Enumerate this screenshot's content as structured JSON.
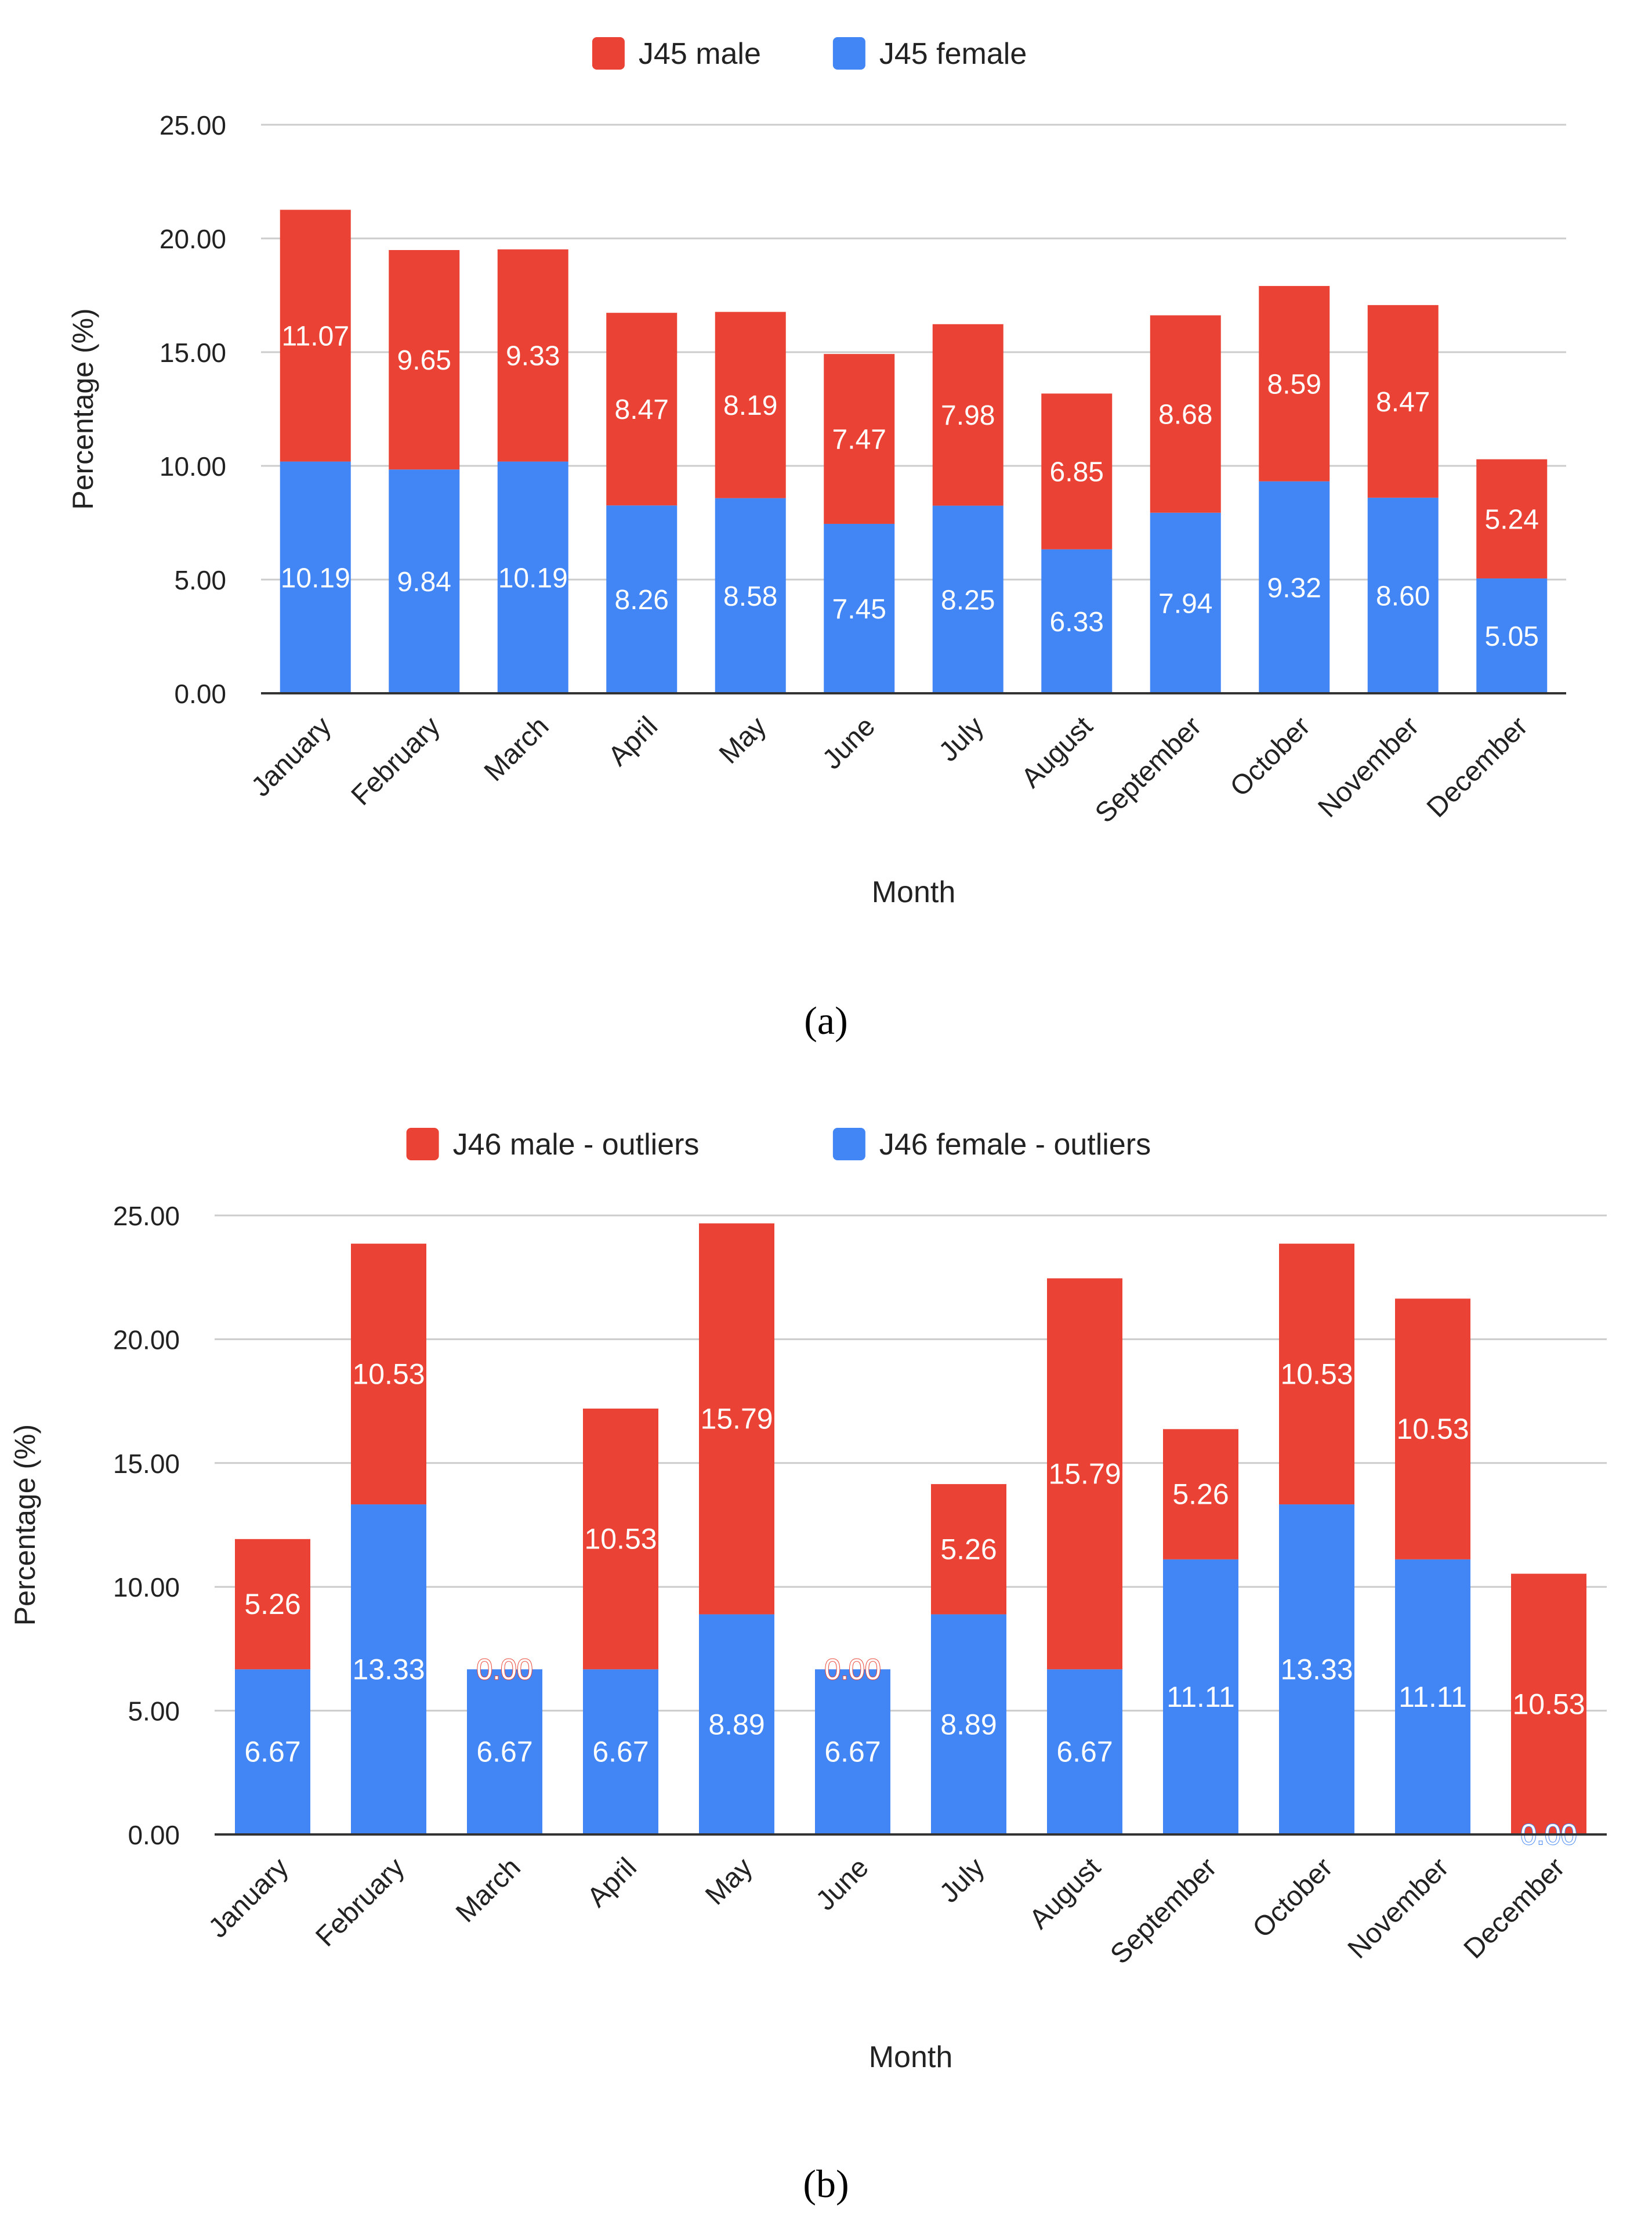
{
  "colors": {
    "male": "#ea4335",
    "female": "#4285f4",
    "grid": "#cccccc",
    "axis": "#333333",
    "text": "#222222"
  },
  "panel_labels": [
    "(a)",
    "(b)"
  ],
  "chart_data": [
    {
      "type": "bar",
      "stacked": true,
      "title": "",
      "xlabel": "Month",
      "ylabel": "Percentage (%)",
      "ylim": [
        0,
        25
      ],
      "yticks": [
        "0.00",
        "5.00",
        "10.00",
        "15.00",
        "20.00",
        "25.00"
      ],
      "legend_position": "top",
      "categories": [
        "January",
        "February",
        "March",
        "April",
        "May",
        "June",
        "July",
        "August",
        "September",
        "October",
        "November",
        "December"
      ],
      "series": [
        {
          "name": "J45 female",
          "color_key": "female",
          "values": [
            10.19,
            9.84,
            10.19,
            8.26,
            8.58,
            7.45,
            8.25,
            6.33,
            7.94,
            9.32,
            8.6,
            5.05
          ],
          "labels": [
            "10.19",
            "9.84",
            "10.19",
            "8.26",
            "8.58",
            "7.45",
            "8.25",
            "6.33",
            "7.94",
            "9.32",
            "8.60",
            "5.05"
          ]
        },
        {
          "name": "J45 male",
          "color_key": "male",
          "values": [
            11.07,
            9.65,
            9.33,
            8.47,
            8.19,
            7.47,
            7.98,
            6.85,
            8.68,
            8.59,
            8.47,
            5.24
          ],
          "labels": [
            "11.07",
            "9.65",
            "9.33",
            "8.47",
            "8.19",
            "7.47",
            "7.98",
            "6.85",
            "8.68",
            "8.59",
            "8.47",
            "5.24"
          ]
        }
      ],
      "legend": [
        "J45 male",
        "J45 female"
      ]
    },
    {
      "type": "bar",
      "stacked": true,
      "title": "",
      "xlabel": "Month",
      "ylabel": "Percentage (%)",
      "ylim": [
        0,
        25
      ],
      "yticks": [
        "0.00",
        "5.00",
        "10.00",
        "15.00",
        "20.00",
        "25.00"
      ],
      "legend_position": "top",
      "categories": [
        "January",
        "February",
        "March",
        "April",
        "May",
        "June",
        "July",
        "August",
        "September",
        "October",
        "November",
        "December"
      ],
      "series": [
        {
          "name": "J46 female - outliers",
          "color_key": "female",
          "values": [
            6.67,
            13.33,
            6.67,
            6.67,
            8.89,
            6.67,
            8.89,
            6.67,
            11.11,
            13.33,
            11.11,
            0.0
          ],
          "labels": [
            "6.67",
            "13.33",
            "6.67",
            "6.67",
            "8.89",
            "6.67",
            "8.89",
            "6.67",
            "11.11",
            "13.33",
            "11.11",
            "0.00"
          ]
        },
        {
          "name": "J46 male - outliers",
          "color_key": "male",
          "values": [
            5.26,
            10.53,
            0.0,
            10.53,
            15.79,
            0.0,
            5.26,
            15.79,
            5.26,
            10.53,
            10.53,
            10.53
          ],
          "labels": [
            "5.26",
            "10.53",
            "0.00",
            "10.53",
            "15.79",
            "0.00",
            "5.26",
            "15.79",
            "5.26",
            "10.53",
            "10.53",
            "10.53"
          ]
        }
      ],
      "legend": [
        "J46 male - outliers",
        "J46 female - outliers"
      ]
    }
  ]
}
